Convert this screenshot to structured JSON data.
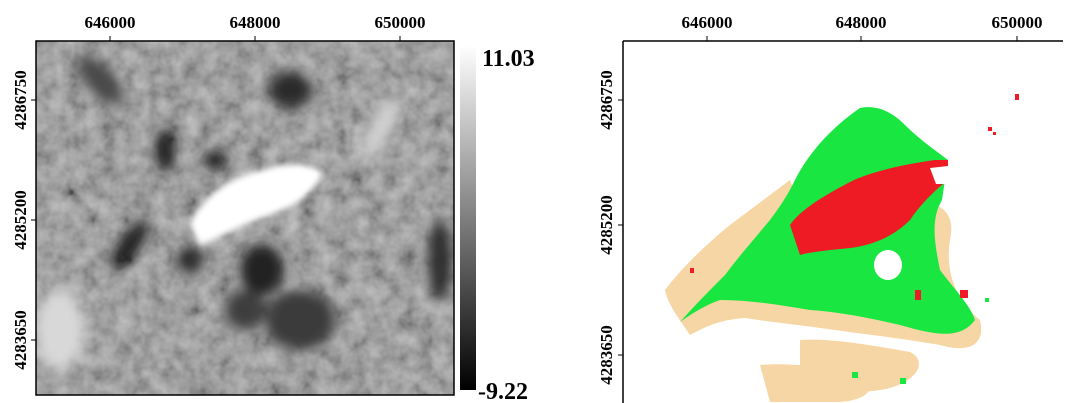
{
  "left_map": {
    "x_ticks": [
      "646000",
      "648000",
      "650000"
    ],
    "y_ticks": [
      "4286750",
      "4285200",
      "4283650"
    ],
    "colorbar": {
      "max_label": "11.03",
      "min_label": "-9.22"
    }
  },
  "right_map": {
    "x_ticks": [
      "646000",
      "648000",
      "650000"
    ],
    "y_ticks": [
      "4286750",
      "4285200",
      "4283650"
    ],
    "classes": [
      {
        "name": "class-red",
        "color": "#ee1a24"
      },
      {
        "name": "class-green",
        "color": "#19e640"
      },
      {
        "name": "class-tan",
        "color": "#f6d6a4"
      }
    ]
  }
}
